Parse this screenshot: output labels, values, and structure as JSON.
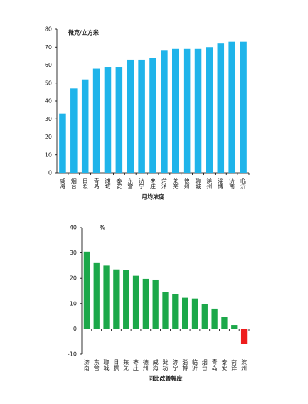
{
  "chart_data": [
    {
      "type": "bar",
      "unit_label": "微克/立方米",
      "xlabel": "月均浓度",
      "categories": [
        "威海",
        "烟台",
        "日照",
        "青岛",
        "潍坊",
        "泰安",
        "东营",
        "济宁",
        "枣庄",
        "菏泽",
        "莱芜",
        "德州",
        "聊城",
        "滨州",
        "淄博",
        "济南",
        "临沂"
      ],
      "values": [
        33,
        47,
        52,
        58,
        59,
        59,
        63,
        63,
        64,
        68,
        69,
        69,
        69,
        70,
        72,
        73,
        73
      ],
      "color": "#1fb4ea",
      "ylim": [
        0,
        80
      ],
      "yticks": [
        0,
        10,
        20,
        30,
        40,
        50,
        60,
        70,
        80
      ]
    },
    {
      "type": "bar",
      "unit_label": "%",
      "xlabel": "同比改善幅度",
      "categories": [
        "济南",
        "东营",
        "聊城",
        "日照",
        "莱芜",
        "枣庄",
        "德州",
        "威海",
        "潍坊",
        "济宁",
        "淄博",
        "临沂",
        "烟台",
        "青岛",
        "泰安",
        "菏泽",
        "滨州"
      ],
      "values": [
        30.5,
        26,
        25,
        23.5,
        23.3,
        21,
        19.8,
        19.5,
        14.5,
        13.7,
        12.3,
        12,
        9.7,
        8,
        4.8,
        1.5,
        -6
      ],
      "color": "#1ca84a",
      "negative_color": "#ee1c1c",
      "ylim": [
        -10,
        40
      ],
      "yticks": [
        -10,
        0,
        10,
        20,
        30,
        40
      ]
    }
  ]
}
